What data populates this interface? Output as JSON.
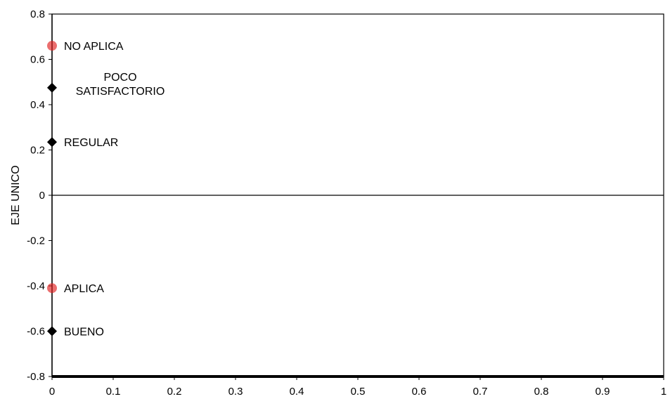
{
  "chart_data": {
    "type": "scatter",
    "title": "",
    "xlabel": "",
    "ylabel": "EJE UNICO",
    "xlim": [
      0,
      1
    ],
    "ylim": [
      -0.8,
      0.8
    ],
    "x_ticks": [
      "0",
      "0.1",
      "0.2",
      "0.3",
      "0.4",
      "0.5",
      "0.6",
      "0.7",
      "0.8",
      "0.9",
      "1"
    ],
    "y_ticks": [
      "-0.8",
      "-0.6",
      "-0.4",
      "-0.2",
      "0",
      "0.2",
      "0.4",
      "0.6",
      "0.8"
    ],
    "grid": false,
    "legend": "none",
    "points": [
      {
        "label": "NO APLICA",
        "x": 0,
        "y": 0.66,
        "color": "#e02020",
        "marker": "circle"
      },
      {
        "label_lines": [
          "POCO",
          "SATISFACTORIO"
        ],
        "x": 0,
        "y": 0.475,
        "color": "#000000",
        "marker": "diamond"
      },
      {
        "label": "REGULAR",
        "x": 0,
        "y": 0.235,
        "color": "#000000",
        "marker": "diamond"
      },
      {
        "label": "APLICA",
        "x": 0,
        "y": -0.41,
        "color": "#e02020",
        "marker": "circle"
      },
      {
        "label": "BUENO",
        "x": 0,
        "y": -0.6,
        "color": "#000000",
        "marker": "diamond"
      }
    ]
  }
}
